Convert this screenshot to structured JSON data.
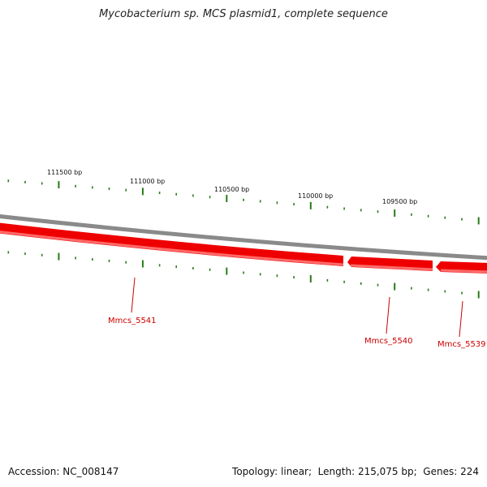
{
  "title": "Mycobacterium sp. MCS plasmid1, complete sequence",
  "colors": {
    "backbone": "#8a8a8a",
    "gene_fill": "#ee0000",
    "gene_highlight": "#ff6a6a",
    "tick": "#2a7a1a",
    "gene_label": "#cc0000",
    "bp_label": "#111111"
  },
  "footer": {
    "accession_label": "Accession:",
    "accession": "NC_008147",
    "topology_label": "Topology:",
    "topology": "linear",
    "length_label": "Length:",
    "length": "215,075 bp",
    "genes_label": "Genes:",
    "genes": "224"
  },
  "map": {
    "scale_labels": [
      "111500 bp",
      "111000 bp",
      "110500 bp",
      "110000 bp",
      "109500 bp"
    ],
    "genes": [
      {
        "name": "Mmcs_5541"
      },
      {
        "name": "Mmcs_5540"
      },
      {
        "name": "Mmcs_5539"
      }
    ]
  }
}
